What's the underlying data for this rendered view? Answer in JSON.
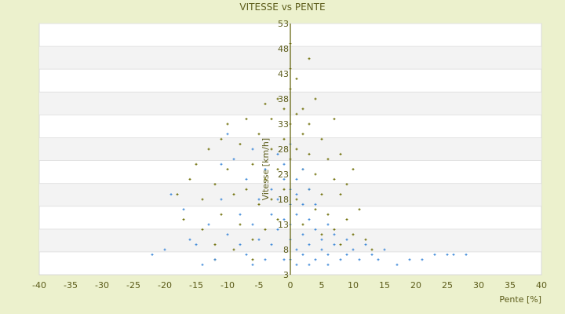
{
  "chart_data": {
    "type": "scatter",
    "title": "VITESSE vs PENTE",
    "xlabel": "Pente [%]",
    "ylabel": "Vitesse [km/h]",
    "xlim": [
      -40,
      40
    ],
    "ylim": [
      3,
      53
    ],
    "xticks": [
      -40,
      -35,
      -30,
      -25,
      -20,
      -15,
      -10,
      -5,
      0,
      5,
      10,
      15,
      20,
      25,
      30,
      35,
      40
    ],
    "yticks": [
      53,
      48,
      43,
      38,
      33,
      28,
      23,
      18,
      13,
      8,
      3
    ],
    "grid": true,
    "colors": {
      "background": "#ecf1cd",
      "plot": "#ffffff",
      "band": "#f3f3f3",
      "axis": "#5c5c00",
      "text": "#5c5c1a"
    },
    "series": [
      {
        "color": "#6b6b00",
        "marker": "plus",
        "points": [
          [
            -16,
            22
          ],
          [
            -15,
            25
          ],
          [
            -14,
            18
          ],
          [
            -14,
            12
          ],
          [
            -13,
            28
          ],
          [
            -12,
            21
          ],
          [
            -12,
            9
          ],
          [
            -11,
            30
          ],
          [
            -11,
            15
          ],
          [
            -10,
            33
          ],
          [
            -10,
            24
          ],
          [
            -9,
            19
          ],
          [
            -9,
            8
          ],
          [
            -8,
            29
          ],
          [
            -8,
            13
          ],
          [
            -7,
            34
          ],
          [
            -7,
            20
          ],
          [
            -6,
            25
          ],
          [
            -6,
            10
          ],
          [
            -5,
            31
          ],
          [
            -5,
            17
          ],
          [
            -4,
            37
          ],
          [
            -4,
            22
          ],
          [
            -4,
            12
          ],
          [
            -3,
            28
          ],
          [
            -3,
            34
          ],
          [
            -3,
            18
          ],
          [
            -2,
            38
          ],
          [
            -2,
            24
          ],
          [
            -2,
            14
          ],
          [
            -1,
            30
          ],
          [
            -1,
            36
          ],
          [
            -1,
            20
          ],
          [
            0,
            49
          ],
          [
            0,
            44
          ],
          [
            0,
            40
          ],
          [
            0,
            26
          ],
          [
            0,
            33
          ],
          [
            1,
            42
          ],
          [
            1,
            35
          ],
          [
            1,
            28
          ],
          [
            1,
            18
          ],
          [
            2,
            31
          ],
          [
            2,
            24
          ],
          [
            2,
            36
          ],
          [
            2,
            13
          ],
          [
            3,
            27
          ],
          [
            3,
            20
          ],
          [
            3,
            33
          ],
          [
            4,
            38
          ],
          [
            4,
            23
          ],
          [
            4,
            16
          ],
          [
            5,
            30
          ],
          [
            5,
            19
          ],
          [
            5,
            11
          ],
          [
            6,
            26
          ],
          [
            6,
            15
          ],
          [
            7,
            22
          ],
          [
            7,
            34
          ],
          [
            7,
            12
          ],
          [
            8,
            19
          ],
          [
            8,
            27
          ],
          [
            8,
            9
          ],
          [
            9,
            14
          ],
          [
            9,
            21
          ],
          [
            10,
            24
          ],
          [
            10,
            11
          ],
          [
            11,
            16
          ],
          [
            12,
            10
          ],
          [
            -17,
            14
          ],
          [
            -18,
            19
          ],
          [
            3,
            46
          ],
          [
            -12,
            6
          ],
          [
            13,
            8
          ],
          [
            -6,
            6
          ]
        ]
      },
      {
        "color": "#3a86d8",
        "marker": "plus",
        "points": [
          [
            -22,
            7
          ],
          [
            -20,
            8
          ],
          [
            -19,
            19
          ],
          [
            -17,
            16
          ],
          [
            -16,
            10
          ],
          [
            -15,
            9
          ],
          [
            -13,
            13
          ],
          [
            -12,
            6
          ],
          [
            -11,
            18
          ],
          [
            -10,
            11
          ],
          [
            -9,
            26
          ],
          [
            -8,
            9
          ],
          [
            -8,
            15
          ],
          [
            -7,
            22
          ],
          [
            -7,
            7
          ],
          [
            -6,
            13
          ],
          [
            -6,
            28
          ],
          [
            -5,
            18
          ],
          [
            -5,
            10
          ],
          [
            -4,
            24
          ],
          [
            -4,
            6
          ],
          [
            -3,
            15
          ],
          [
            -3,
            20
          ],
          [
            -3,
            9
          ],
          [
            -2,
            27
          ],
          [
            -2,
            12
          ],
          [
            -2,
            18
          ],
          [
            -1,
            6
          ],
          [
            -1,
            22
          ],
          [
            -1,
            14
          ],
          [
            -1,
            25
          ],
          [
            0,
            10
          ],
          [
            0,
            17
          ],
          [
            0,
            20
          ],
          [
            0,
            6
          ],
          [
            0,
            29
          ],
          [
            0,
            13
          ],
          [
            1,
            8
          ],
          [
            1,
            15
          ],
          [
            1,
            22
          ],
          [
            1,
            19
          ],
          [
            1,
            5
          ],
          [
            2,
            11
          ],
          [
            2,
            17
          ],
          [
            2,
            24
          ],
          [
            2,
            7
          ],
          [
            3,
            14
          ],
          [
            3,
            9
          ],
          [
            3,
            20
          ],
          [
            4,
            12
          ],
          [
            4,
            6
          ],
          [
            4,
            17
          ],
          [
            5,
            10
          ],
          [
            5,
            8
          ],
          [
            6,
            13
          ],
          [
            6,
            7
          ],
          [
            7,
            9
          ],
          [
            7,
            11
          ],
          [
            8,
            6
          ],
          [
            9,
            10
          ],
          [
            9,
            7
          ],
          [
            10,
            8
          ],
          [
            11,
            6
          ],
          [
            12,
            9
          ],
          [
            13,
            7
          ],
          [
            14,
            6
          ],
          [
            15,
            8
          ],
          [
            17,
            5
          ],
          [
            19,
            6
          ],
          [
            21,
            6
          ],
          [
            23,
            7
          ],
          [
            25,
            7
          ],
          [
            26,
            7
          ],
          [
            28,
            7
          ],
          [
            -10,
            31
          ],
          [
            -11,
            25
          ],
          [
            -14,
            5
          ],
          [
            -6,
            5
          ],
          [
            3,
            5
          ],
          [
            6,
            5
          ]
        ]
      }
    ]
  }
}
